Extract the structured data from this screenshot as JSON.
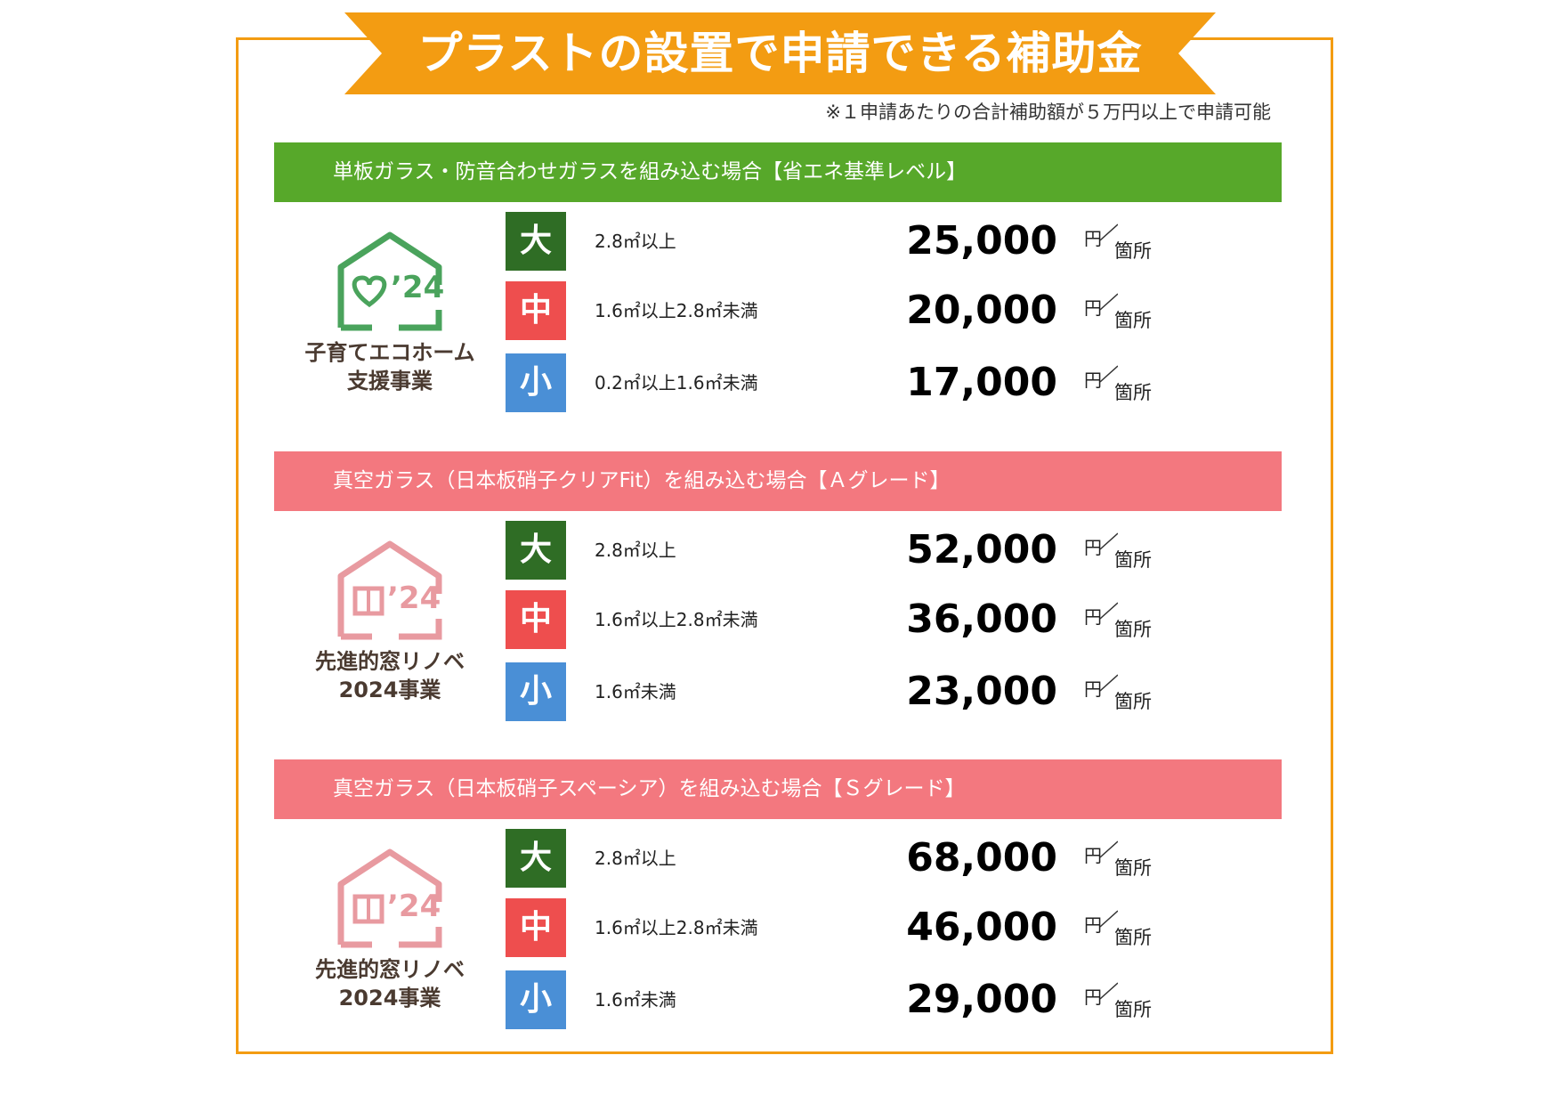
{
  "title": "プラストの設置で申請できる補助金",
  "note": "※１申請あたりの合計補助額が５万円以上で申請可能",
  "colors": {
    "frame": "#f39c12",
    "banner": "#f39c12",
    "green_header": "#57a82a",
    "pink_header": "#f3787f",
    "badge_large": "#2f6d25",
    "badge_medium": "#ee4e4e",
    "badge_small": "#4a8fd6"
  },
  "sections": [
    {
      "header": "単板ガラス・防音合わせガラスを組み込む場合【省エネ基準レベル】",
      "program_line1": "子育てエコホーム",
      "program_line2": "支援事業",
      "logo_year": "’24",
      "logo_icon": "heart-house-icon",
      "rows": [
        {
          "size": "大",
          "condition": "2.8㎡以上",
          "amount": "25,000",
          "unit_yen": "円",
          "unit_place": "箇所"
        },
        {
          "size": "中",
          "condition": "1.6㎡以上2.8㎡未満",
          "amount": "20,000",
          "unit_yen": "円",
          "unit_place": "箇所"
        },
        {
          "size": "小",
          "condition": "0.2㎡以上1.6㎡未満",
          "amount": "17,000",
          "unit_yen": "円",
          "unit_place": "箇所"
        }
      ]
    },
    {
      "header": "真空ガラス（日本板硝子クリアFit）を組み込む場合【Ａグレード】",
      "program_line1": "先進的窓リノベ",
      "program_line2": "2024事業",
      "logo_year": "’24",
      "logo_icon": "window-house-icon",
      "rows": [
        {
          "size": "大",
          "condition": "2.8㎡以上",
          "amount": "52,000",
          "unit_yen": "円",
          "unit_place": "箇所"
        },
        {
          "size": "中",
          "condition": "1.6㎡以上2.8㎡未満",
          "amount": "36,000",
          "unit_yen": "円",
          "unit_place": "箇所"
        },
        {
          "size": "小",
          "condition": "1.6㎡未満",
          "amount": "23,000",
          "unit_yen": "円",
          "unit_place": "箇所"
        }
      ]
    },
    {
      "header": "真空ガラス（日本板硝子スペーシア）を組み込む場合【Ｓグレード】",
      "program_line1": "先進的窓リノベ",
      "program_line2": "2024事業",
      "logo_year": "’24",
      "logo_icon": "window-house-icon",
      "rows": [
        {
          "size": "大",
          "condition": "2.8㎡以上",
          "amount": "68,000",
          "unit_yen": "円",
          "unit_place": "箇所"
        },
        {
          "size": "中",
          "condition": "1.6㎡以上2.8㎡未満",
          "amount": "46,000",
          "unit_yen": "円",
          "unit_place": "箇所"
        },
        {
          "size": "小",
          "condition": "1.6㎡未満",
          "amount": "29,000",
          "unit_yen": "円",
          "unit_place": "箇所"
        }
      ]
    }
  ]
}
